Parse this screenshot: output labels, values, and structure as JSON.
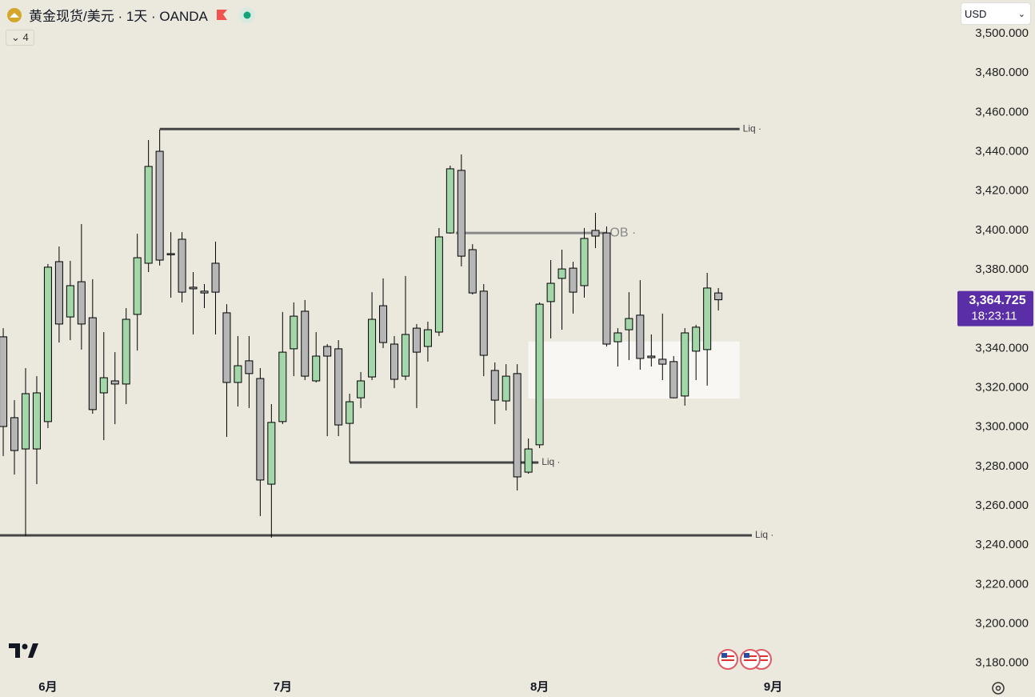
{
  "header": {
    "title": "黄金现货/美元 · 1天 · OANDA",
    "indicator_count": "4",
    "currency": "USD"
  },
  "chart_data": {
    "type": "candlestick",
    "up_color": "#a3d6a9",
    "down_color": "#b6b6b6",
    "open": [
      3345.9,
      3304.8,
      3288.9,
      3288.9,
      3302.8,
      3384.1,
      3356.0,
      3373.9,
      3355.6,
      3317.4,
      3323.5,
      3321.9,
      3357.3,
      3383.3,
      3440.2,
      3388.2,
      3395.5,
      3371.1,
      3369.1,
      3383.3,
      3358.1,
      3322.7,
      3333.7,
      3324.7,
      3271.0,
      3302.8,
      3339.8,
      3358.9,
      3323.5,
      3341.0,
      3339.8,
      3301.9,
      3314.9,
      3325.5,
      3361.7,
      3342.2,
      3325.9,
      3350.3,
      3341.0,
      3348.3,
      3398.7,
      3430.5,
      3390.2,
      3369.1,
      3328.8,
      3313.3,
      3327.2,
      3277.1,
      3291.0,
      3363.8,
      3375.6,
      3380.8,
      3371.9,
      3400.0,
      3398.7,
      3343.4,
      3349.5,
      3356.9,
      3336.1,
      3334.5,
      3333.3,
      3315.8,
      3338.6,
      3339.4,
      3368.2
    ],
    "high": [
      3350.3,
      3313.7,
      3330.0,
      3325.9,
      3382.9,
      3391.8,
      3384.5,
      3403.2,
      3375.2,
      3348.3,
      3338.1,
      3360.5,
      3398.3,
      3445.9,
      3451.2,
      3399.1,
      3399.1,
      3378.8,
      3372.7,
      3394.3,
      3362.5,
      3346.3,
      3346.3,
      3330.0,
      3311.7,
      3358.5,
      3363.4,
      3364.6,
      3348.3,
      3342.2,
      3344.2,
      3317.0,
      3328.0,
      3368.6,
      3375.6,
      3346.3,
      3376.8,
      3352.4,
      3353.6,
      3401.2,
      3432.9,
      3438.6,
      3393.0,
      3372.7,
      3332.9,
      3332.0,
      3332.0,
      3294.2,
      3363.4,
      3384.9,
      3390.2,
      3384.1,
      3401.2,
      3408.9,
      3402.0,
      3350.3,
      3368.6,
      3374.7,
      3347.1,
      3357.7,
      3336.1,
      3350.3,
      3352.0,
      3378.4,
      3370.7
    ],
    "low": [
      3285.3,
      3275.9,
      3244.6,
      3271.0,
      3299.5,
      3343.0,
      3344.2,
      3339.4,
      3306.8,
      3293.4,
      3301.5,
      3311.7,
      3338.9,
      3378.8,
      3382.1,
      3365.8,
      3363.4,
      3347.1,
      3360.5,
      3347.1,
      3295.0,
      3310.5,
      3309.7,
      3254.8,
      3243.8,
      3301.5,
      3325.9,
      3323.9,
      3322.7,
      3295.4,
      3295.4,
      3282.0,
      3309.7,
      3323.9,
      3340.2,
      3319.8,
      3323.9,
      3309.7,
      3333.3,
      3346.3,
      3398.3,
      3381.7,
      3367.4,
      3325.9,
      3301.5,
      3308.5,
      3267.8,
      3276.3,
      3289.3,
      3345.1,
      3349.5,
      3357.7,
      3365.8,
      3391.0,
      3341.0,
      3330.8,
      3334.1,
      3329.2,
      3330.8,
      3323.9,
      3314.6,
      3310.9,
      3323.9,
      3321.1,
      3359.3
    ],
    "close": [
      3300.3,
      3288.1,
      3317.0,
      3317.4,
      3381.3,
      3352.4,
      3371.9,
      3352.4,
      3308.9,
      3325.1,
      3321.9,
      3354.8,
      3386.1,
      3432.5,
      3384.9,
      3387.8,
      3368.6,
      3370.3,
      3368.2,
      3368.6,
      3322.7,
      3331.2,
      3327.2,
      3273.1,
      3302.4,
      3338.1,
      3356.4,
      3325.9,
      3336.1,
      3336.1,
      3301.1,
      3312.9,
      3323.5,
      3354.8,
      3343.0,
      3324.3,
      3347.1,
      3338.1,
      3349.5,
      3396.7,
      3431.3,
      3386.9,
      3368.2,
      3336.5,
      3313.7,
      3325.9,
      3274.7,
      3288.9,
      3362.5,
      3373.1,
      3380.4,
      3368.6,
      3395.9,
      3397.1,
      3342.2,
      3347.9,
      3355.2,
      3334.9,
      3335.3,
      3332.0,
      3314.9,
      3347.9,
      3350.8,
      3370.7,
      3364.725
    ],
    "xlim": [
      -0.29,
      85.25
    ],
    "xticks": [
      {
        "value": 4,
        "label": "6月"
      },
      {
        "value": 25,
        "label": "7月"
      },
      {
        "value": 48,
        "label": "8月"
      },
      {
        "value": 68.9,
        "label": "9月"
      }
    ],
    "ylim": [
      3173.4,
      3517.1
    ],
    "yticks": [
      {
        "value": 3180,
        "label": "3,180.000"
      },
      {
        "value": 3200,
        "label": "3,200.000"
      },
      {
        "value": 3220,
        "label": "3,220.000"
      },
      {
        "value": 3240,
        "label": "3,240.000"
      },
      {
        "value": 3260,
        "label": "3,260.000"
      },
      {
        "value": 3280,
        "label": "3,280.000"
      },
      {
        "value": 3300,
        "label": "3,300.000"
      },
      {
        "value": 3320,
        "label": "3,320.000"
      },
      {
        "value": 3340,
        "label": "3,340.000"
      },
      {
        "value": 3360,
        "label": "3,360.000"
      },
      {
        "value": 3380,
        "label": "3,380.000"
      },
      {
        "value": 3400,
        "label": "3,400.000"
      },
      {
        "value": 3420,
        "label": "3,420.000"
      },
      {
        "value": 3440,
        "label": "3,440.000"
      },
      {
        "value": 3460,
        "label": "3,460.000"
      },
      {
        "value": 3480,
        "label": "3,480.000"
      },
      {
        "value": 3500,
        "label": "3,500.000"
      }
    ],
    "last_price": {
      "value": 3364.725,
      "label": "3,364.725"
    },
    "countdown": "18:23:11",
    "levels": [
      {
        "label": "Liq ·",
        "value": 3451.5,
        "from": 14,
        "to": 65.9,
        "color": "#444444"
      },
      {
        "label": "OB ·",
        "value": 3398.7,
        "from": 40.5,
        "to": 54,
        "color": "#888888"
      },
      {
        "label": "Liq ·",
        "value": 3282,
        "from": 31,
        "to": 47.9,
        "color": "#444444"
      },
      {
        "label": "Liq ·",
        "value": 3245,
        "from": -0.29,
        "to": 67,
        "color": "#444444"
      }
    ],
    "zone": {
      "top": 3343.5,
      "bottom": 3314.5,
      "from": 47,
      "to": 65.9,
      "color": "#f8f7f3"
    }
  }
}
